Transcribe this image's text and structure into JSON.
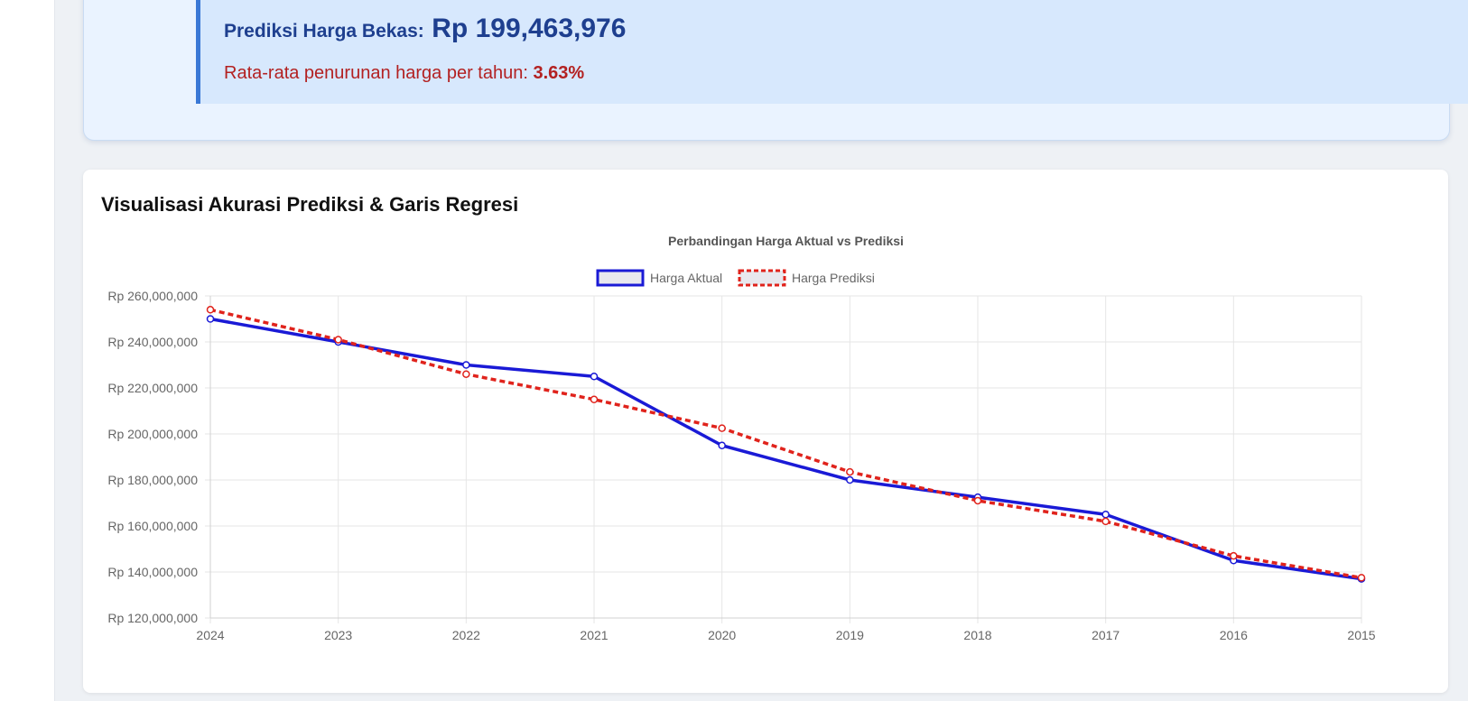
{
  "prediction": {
    "label": "Prediksi Harga Bekas:",
    "value": "Rp 199,463,976",
    "rate_label": "Rata-rata penurunan harga per tahun:",
    "rate_value": "3.63%"
  },
  "chart_section": {
    "heading": "Visualisasi Akurasi Prediksi & Garis Regresi"
  },
  "colors": {
    "actual": "#1a1ad6",
    "predicted": "#e0231c",
    "grid": "#e6e6e6",
    "text": "#666666",
    "title": "#555555"
  },
  "chart_data": {
    "type": "line",
    "title": "Perbandingan Harga Aktual vs Prediksi",
    "categories": [
      "2024",
      "2023",
      "2022",
      "2021",
      "2020",
      "2019",
      "2018",
      "2017",
      "2016",
      "2015"
    ],
    "series": [
      {
        "name": "Harga Aktual",
        "values": [
          250000000,
          240000000,
          230000000,
          225000000,
          195000000,
          180000000,
          172500000,
          165000000,
          145000000,
          137000000
        ],
        "style": "solid"
      },
      {
        "name": "Harga Prediksi",
        "values": [
          254000000,
          241000000,
          226000000,
          215000000,
          202500000,
          183500000,
          171000000,
          162000000,
          147000000,
          137500000
        ],
        "style": "dashed"
      }
    ],
    "ylim": [
      120000000,
      260000000
    ],
    "yticks": [
      260000000,
      240000000,
      220000000,
      200000000,
      180000000,
      160000000,
      140000000,
      120000000
    ],
    "ytick_labels": [
      "Rp 260,000,000",
      "Rp 240,000,000",
      "Rp 220,000,000",
      "Rp 200,000,000",
      "Rp 180,000,000",
      "Rp 160,000,000",
      "Rp 140,000,000",
      "Rp 120,000,000"
    ],
    "xlabel": "",
    "ylabel": "",
    "grid": true,
    "legend": "top-center"
  }
}
